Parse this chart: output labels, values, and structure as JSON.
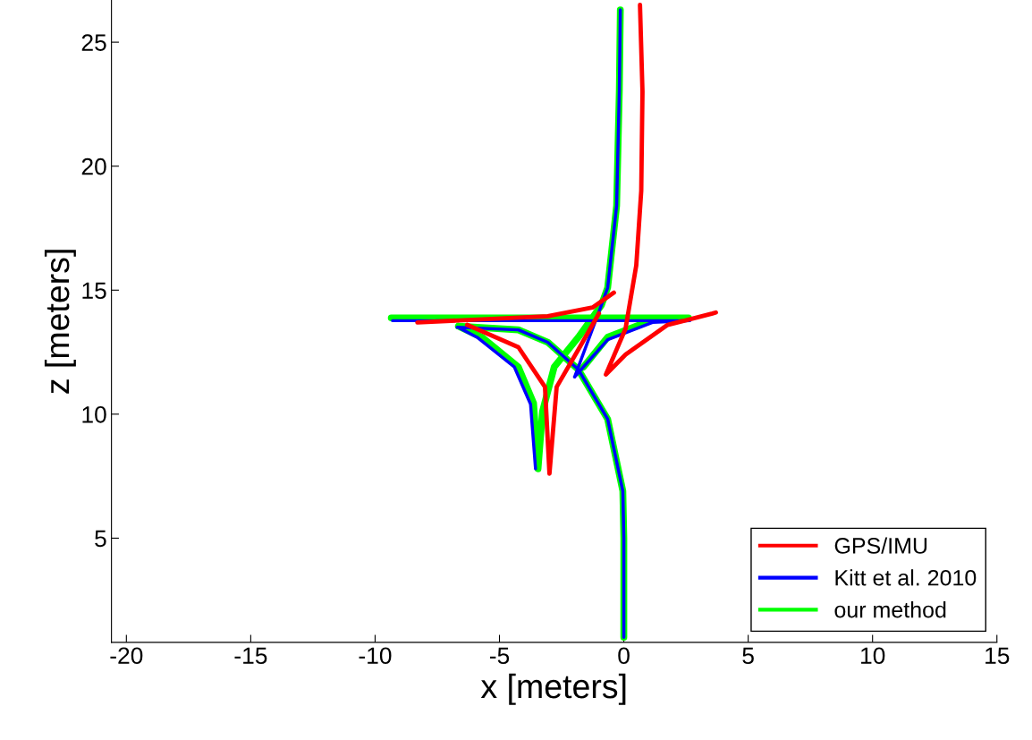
{
  "chart_data": {
    "type": "line",
    "xlabel": "x [meters]",
    "ylabel": "z [meters]",
    "xlim": [
      -20.6,
      15
    ],
    "ylim": [
      0.8,
      26.7
    ],
    "xticks": [
      -20,
      -15,
      -10,
      -5,
      0,
      5,
      10,
      15
    ],
    "yticks": [
      5,
      10,
      15,
      20,
      25
    ],
    "grid": false,
    "legend": "bottom right",
    "marker": "none",
    "line_style": "solid",
    "series": [
      {
        "name": "GPS/IMU",
        "color": "#ff0000",
        "x": [
          0.65,
          0.75,
          0.7,
          0.5,
          0.07,
          -0.72,
          0.07,
          1.76,
          3.56,
          3.7,
          null,
          -8.3,
          -3.06,
          -1.26,
          -0.4,
          null,
          -6.3,
          -4.24,
          -3.17,
          -2.99,
          -2.7,
          -1.83,
          -1.0
        ],
        "values": [
          26.5,
          23,
          19,
          16,
          13.45,
          11.6,
          12.4,
          13.6,
          14.06,
          14.1,
          null,
          13.7,
          13.95,
          14.3,
          14.9,
          null,
          13.6,
          12.7,
          11.1,
          7.6,
          11.1,
          12.6,
          14.06
        ]
      },
      {
        "name": "Kitt et al. 2010",
        "color": "#0000ff",
        "x": [
          0,
          0,
          -0.04,
          -0.65,
          -1.83,
          -3.06,
          -4.24,
          -6.7,
          null,
          -9.3,
          2.65,
          null,
          2.65,
          1.15,
          -0.65,
          -1.98,
          null,
          -0.14,
          -0.18,
          -0.29,
          -0.65,
          -0.9,
          -1.98,
          null,
          -6.65,
          -5.9,
          -4.4,
          -3.75,
          -3.55
        ],
        "values": [
          1,
          5,
          6.9,
          9.8,
          11.8,
          12.9,
          13.4,
          13.5,
          null,
          13.77,
          13.77,
          null,
          13.77,
          13.7,
          13.0,
          11.5,
          null,
          26.3,
          23.1,
          18.4,
          15.1,
          14.4,
          11.5,
          null,
          13.5,
          13.1,
          11.9,
          10.4,
          7.8
        ]
      },
      {
        "name": "our method",
        "color": "#00ff00",
        "x": [
          0,
          0,
          -0.04,
          -0.65,
          -1.83,
          -3.06,
          -4.24,
          -6.65,
          null,
          -9.35,
          2.6,
          null,
          2.6,
          1.15,
          -0.65,
          -1.62,
          null,
          -0.14,
          -0.18,
          -0.29,
          -0.65,
          -0.9,
          -1.83,
          -2.8,
          -3.27,
          -3.45,
          null,
          -6.65,
          -5.7,
          -4.24,
          -3.63,
          -3.45
        ],
        "values": [
          1,
          5,
          6.9,
          9.8,
          11.8,
          12.9,
          13.4,
          13.55,
          null,
          13.88,
          13.88,
          null,
          13.88,
          13.8,
          13.1,
          11.9,
          null,
          26.3,
          23.1,
          18.4,
          15.1,
          14.4,
          13.1,
          11.9,
          10.1,
          7.8,
          null,
          13.55,
          13.1,
          11.9,
          10.45,
          7.9
        ]
      }
    ]
  }
}
